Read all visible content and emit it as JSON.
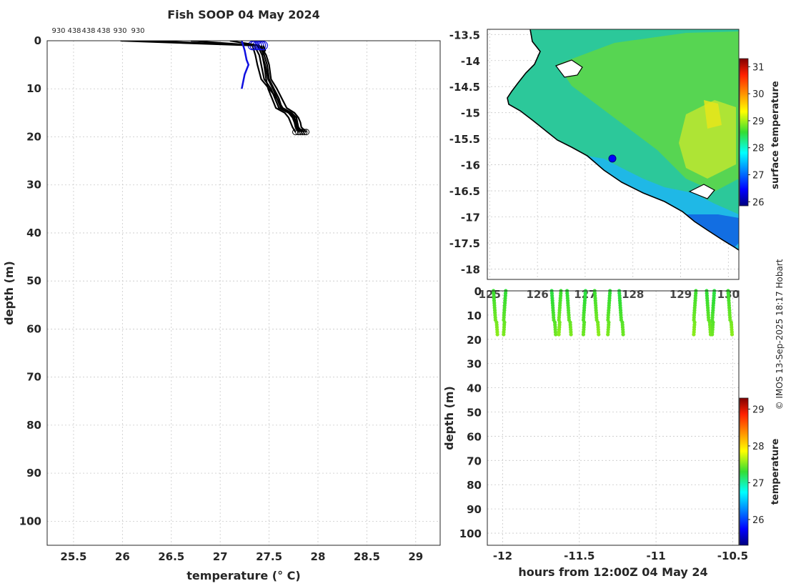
{
  "page": {
    "credit": "© IMOS 13-Sep-2025 18:17 Hobart"
  },
  "chart_data": [
    {
      "type": "line",
      "title": "Fish SOOP 04 May 2024",
      "xlabel": "temperature (° C)",
      "ylabel": "depth (m)",
      "xlim": [
        25.23,
        29.25
      ],
      "ylim": [
        105,
        0
      ],
      "xticks": [
        "25.5",
        "26",
        "26.5",
        "27",
        "27.5",
        "28",
        "28.5",
        "29"
      ],
      "yticks": [
        "0",
        "10",
        "20",
        "30",
        "40",
        "50",
        "60",
        "70",
        "80",
        "90",
        "100"
      ],
      "grid": true,
      "top_labels": [
        "930",
        "438",
        "438",
        "438",
        "930",
        "930"
      ],
      "series": [
        {
          "name": "profiles",
          "color": "#000000",
          "profiles": [
            {
              "temperature": [
                25.98,
                27.33,
                27.36,
                27.38,
                27.42,
                27.5,
                27.58,
                27.64,
                27.73,
                27.78,
                27.79,
                27.8,
                27.84
              ],
              "depth": [
                0,
                1,
                3,
                5,
                8,
                10,
                12,
                14,
                15,
                16,
                17,
                18,
                19
              ]
            },
            {
              "temperature": [
                26.3,
                27.35,
                27.4,
                27.42,
                27.45,
                27.52,
                27.56,
                27.6,
                27.7,
                27.74,
                27.76,
                27.77,
                27.8
              ],
              "depth": [
                0,
                1,
                3,
                5,
                8,
                10,
                12,
                14,
                15,
                16,
                17,
                18,
                19
              ]
            },
            {
              "temperature": [
                26.7,
                27.38,
                27.43,
                27.45,
                27.47,
                27.49,
                27.53,
                27.57,
                27.66,
                27.7,
                27.72,
                27.74,
                27.77
              ],
              "depth": [
                0,
                1,
                3,
                5,
                8,
                10,
                12,
                14,
                15,
                16,
                17,
                18,
                19
              ]
            },
            {
              "temperature": [
                27.1,
                27.4,
                27.45,
                27.48,
                27.5,
                27.55,
                27.6,
                27.63,
                27.72,
                27.76,
                27.78,
                27.79,
                27.86
              ],
              "depth": [
                0,
                1,
                3,
                5,
                8,
                10,
                12,
                14,
                15,
                16,
                17,
                18,
                19
              ]
            },
            {
              "temperature": [
                27.42,
                27.44,
                27.47,
                27.5,
                27.52,
                27.58,
                27.63,
                27.68,
                27.76,
                27.8,
                27.82,
                27.83,
                27.88
              ],
              "depth": [
                1,
                2,
                3,
                5,
                8,
                10,
                12,
                14,
                15,
                16,
                17,
                18,
                19
              ]
            },
            {
              "temperature": [
                27.44,
                27.46,
                27.43,
                27.46,
                27.49,
                27.54,
                27.58,
                27.62,
                27.7,
                27.75,
                27.77,
                27.78,
                27.82
              ],
              "depth": [
                1,
                2,
                3,
                5,
                8,
                10,
                12,
                14,
                15,
                16,
                17,
                18,
                19
              ]
            }
          ]
        },
        {
          "name": "profile",
          "color": "#1010e0",
          "temperature": [
            27.22,
            27.25,
            27.27,
            27.29,
            27.25,
            27.22
          ],
          "depth": [
            0,
            2,
            4,
            5,
            7,
            10
          ]
        }
      ]
    },
    {
      "type": "heatmap",
      "xticks": [
        "125",
        "126",
        "127",
        "128",
        "129",
        "130"
      ],
      "yticks": [
        "-13.5",
        "-14",
        "-14.5",
        "-15",
        "-15.5",
        "-16",
        "-16.5",
        "-17",
        "-17.5",
        "-18"
      ],
      "xlim": [
        124.95,
        130.22
      ],
      "ylim": [
        -18.2,
        -13.4
      ],
      "marker": {
        "lon": 127.57,
        "lat": -15.88
      },
      "colorbar": {
        "label": "surface temperature",
        "ticks": [
          "26",
          "27",
          "28",
          "29",
          "30",
          "31"
        ],
        "range": [
          25.85,
          31.3
        ]
      }
    },
    {
      "type": "scatter",
      "xlabel": "hours from 12:00Z 04 May 24",
      "ylabel": "depth (m)",
      "xticks": [
        "-12",
        "-11.5",
        "-11",
        "-10.5"
      ],
      "yticks": [
        "0",
        "10",
        "20",
        "30",
        "40",
        "50",
        "60",
        "70",
        "80",
        "90",
        "100"
      ],
      "xlim": [
        -12.1,
        -10.46
      ],
      "ylim": [
        105,
        0
      ],
      "profile_times": [
        -12.06,
        -11.98,
        -11.68,
        -11.62,
        -11.58,
        -11.46,
        -11.4,
        -11.3,
        -11.24,
        -10.74,
        -10.67,
        -10.62,
        -10.53
      ],
      "colorbar": {
        "label": "temperature",
        "ticks": [
          "26",
          "27",
          "28",
          "29"
        ],
        "range": [
          25.3,
          29.3
        ]
      }
    }
  ]
}
